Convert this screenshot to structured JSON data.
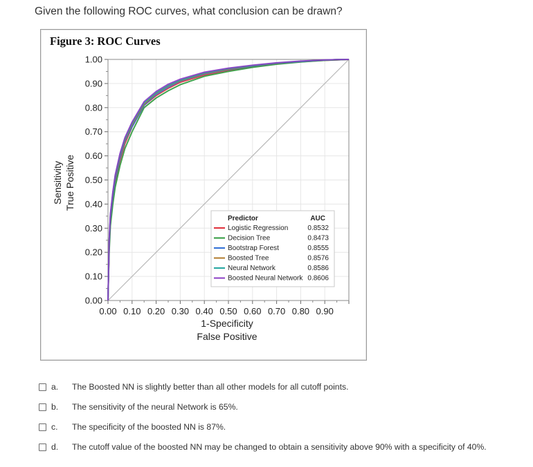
{
  "question": "Given the following ROC curves, what conclusion can be drawn?",
  "figure": {
    "title": "Figure 3: ROC Curves"
  },
  "chart_data": {
    "type": "line",
    "title": "Figure 3: ROC Curves",
    "xlabel": [
      "1-Specificity",
      "False Positive"
    ],
    "ylabel": [
      "Sensitivity",
      "True Positive"
    ],
    "xlim": [
      0,
      1
    ],
    "ylim": [
      0,
      1
    ],
    "x_ticks": [
      "0.00",
      "0.10",
      "0.20",
      "0.30",
      "0.40",
      "0.50",
      "0.60",
      "0.70",
      "0.80",
      "0.90"
    ],
    "y_ticks": [
      "0.00",
      "0.10",
      "0.20",
      "0.30",
      "0.40",
      "0.50",
      "0.60",
      "0.70",
      "0.80",
      "0.90",
      "1.00"
    ],
    "legend": {
      "header_predictor": "Predictor",
      "header_auc": "AUC",
      "placement": "bottom-right"
    },
    "diagonal_reference": true,
    "series": [
      {
        "name": "Logistic Regression",
        "auc": "0.8532",
        "color": "#e0303a",
        "x": [
          0,
          0.005,
          0.01,
          0.02,
          0.03,
          0.05,
          0.07,
          0.1,
          0.15,
          0.2,
          0.25,
          0.3,
          0.4,
          0.5,
          0.6,
          0.7,
          0.8,
          0.9,
          0.95,
          1
        ],
        "y": [
          0,
          0.22,
          0.33,
          0.42,
          0.49,
          0.58,
          0.65,
          0.72,
          0.81,
          0.85,
          0.88,
          0.905,
          0.935,
          0.955,
          0.97,
          0.982,
          0.99,
          0.996,
          0.998,
          1
        ]
      },
      {
        "name": "Decision Tree",
        "auc": "0.8473",
        "color": "#2e9a3c",
        "x": [
          0,
          0.005,
          0.01,
          0.02,
          0.03,
          0.05,
          0.07,
          0.1,
          0.15,
          0.2,
          0.25,
          0.3,
          0.4,
          0.5,
          0.6,
          0.7,
          0.8,
          0.9,
          0.95,
          1
        ],
        "y": [
          0,
          0.2,
          0.31,
          0.4,
          0.47,
          0.56,
          0.63,
          0.7,
          0.8,
          0.84,
          0.87,
          0.895,
          0.93,
          0.95,
          0.967,
          0.98,
          0.989,
          0.996,
          0.998,
          1
        ]
      },
      {
        "name": "Bootstrap Forest",
        "auc": "0.8555",
        "color": "#2f6fd6",
        "x": [
          0,
          0.005,
          0.01,
          0.02,
          0.03,
          0.05,
          0.07,
          0.1,
          0.15,
          0.2,
          0.25,
          0.3,
          0.4,
          0.5,
          0.6,
          0.7,
          0.8,
          0.9,
          0.95,
          1
        ],
        "y": [
          0,
          0.23,
          0.34,
          0.43,
          0.5,
          0.59,
          0.66,
          0.72,
          0.81,
          0.855,
          0.885,
          0.91,
          0.94,
          0.958,
          0.972,
          0.983,
          0.991,
          0.997,
          0.999,
          1
        ]
      },
      {
        "name": "Boosted Tree",
        "auc": "0.8576",
        "color": "#b07a2a",
        "x": [
          0,
          0.005,
          0.01,
          0.02,
          0.03,
          0.05,
          0.07,
          0.1,
          0.15,
          0.2,
          0.25,
          0.3,
          0.4,
          0.5,
          0.6,
          0.7,
          0.8,
          0.9,
          0.95,
          1
        ],
        "y": [
          0,
          0.24,
          0.35,
          0.44,
          0.51,
          0.6,
          0.665,
          0.73,
          0.815,
          0.86,
          0.89,
          0.912,
          0.942,
          0.96,
          0.973,
          0.984,
          0.992,
          0.997,
          0.999,
          1
        ]
      },
      {
        "name": "Neural Network",
        "auc": "0.8586",
        "color": "#23a6a0",
        "x": [
          0,
          0.005,
          0.01,
          0.02,
          0.03,
          0.05,
          0.07,
          0.1,
          0.15,
          0.2,
          0.25,
          0.3,
          0.4,
          0.5,
          0.6,
          0.7,
          0.8,
          0.9,
          0.95,
          1
        ],
        "y": [
          0,
          0.245,
          0.355,
          0.445,
          0.515,
          0.605,
          0.67,
          0.735,
          0.82,
          0.862,
          0.892,
          0.914,
          0.944,
          0.962,
          0.974,
          0.985,
          0.992,
          0.997,
          0.999,
          1
        ]
      },
      {
        "name": "Boosted Neural Network",
        "auc": "0.8606",
        "color": "#8a3cc4",
        "x": [
          0,
          0.005,
          0.01,
          0.02,
          0.03,
          0.05,
          0.07,
          0.1,
          0.15,
          0.2,
          0.25,
          0.3,
          0.4,
          0.5,
          0.6,
          0.7,
          0.8,
          0.9,
          0.95,
          1
        ],
        "y": [
          0,
          0.25,
          0.36,
          0.45,
          0.52,
          0.61,
          0.675,
          0.74,
          0.825,
          0.867,
          0.897,
          0.918,
          0.947,
          0.964,
          0.976,
          0.986,
          0.993,
          0.998,
          0.999,
          1
        ]
      }
    ]
  },
  "options": [
    {
      "letter": "a.",
      "text": "The Boosted NN is slightly better than all other models for all cutoff points."
    },
    {
      "letter": "b.",
      "text": "The sensitivity of the neural Network is 65%."
    },
    {
      "letter": "c.",
      "text": "The specificity of the boosted NN is 87%."
    },
    {
      "letter": "d.",
      "text": "The cutoff value of the boosted NN may be changed to obtain a sensitivity above 90% with a specificity of 40%."
    }
  ]
}
